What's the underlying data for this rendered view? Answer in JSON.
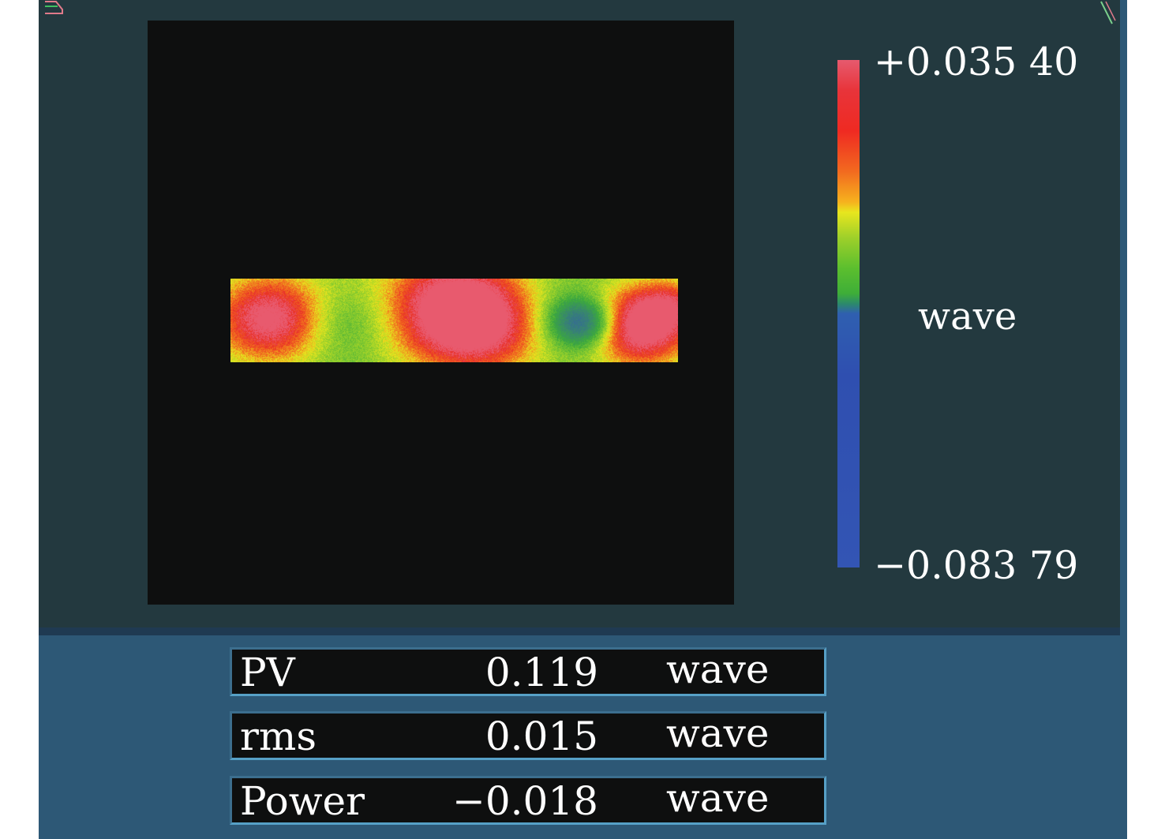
{
  "colorbar": {
    "max_label": "+0.035 40",
    "unit_label": "wave",
    "min_label": "−0.083 79",
    "gradient_colors": [
      "#e65a6e",
      "#e8343a",
      "#f26a1f",
      "#e8e61e",
      "#5cbf2e",
      "#2f5fb0",
      "#3355b4"
    ]
  },
  "stats": {
    "pv": {
      "name": "PV",
      "value": "0.119",
      "unit": "wave"
    },
    "rms": {
      "name": "rms",
      "value": "0.015",
      "unit": "wave"
    },
    "power": {
      "name": "Power",
      "value": "−0.018",
      "unit": "wave"
    }
  },
  "colors": {
    "window_bg": "#2d5876",
    "panel_bg": "#23393f",
    "map_bg": "#0e0f0f"
  }
}
